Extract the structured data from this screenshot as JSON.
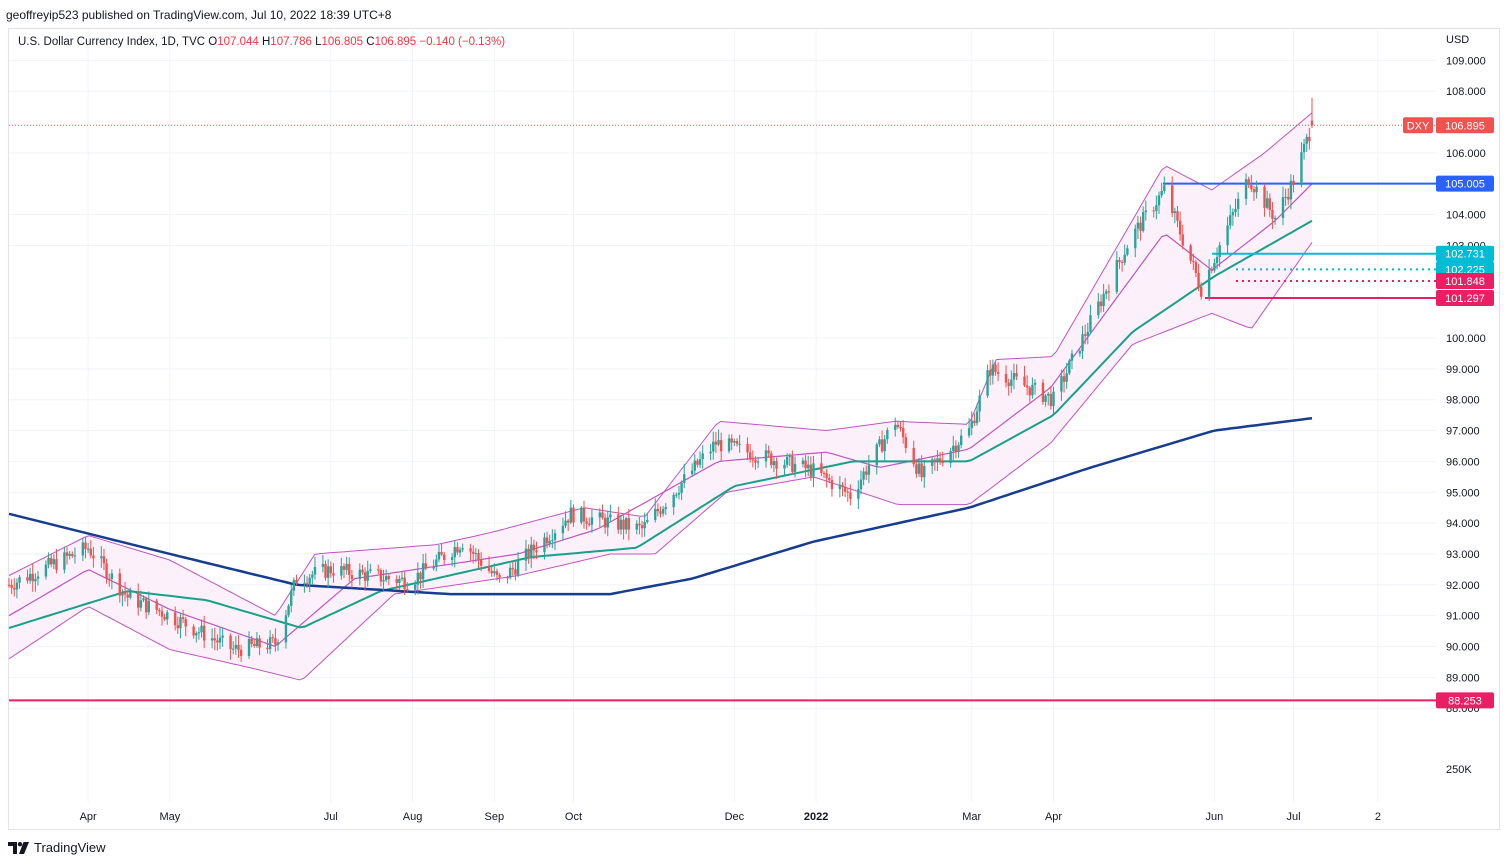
{
  "header": {
    "publisher": "geoffreyip523 published on TradingView.com, Jul 10, 2022 18:39 UTC+8"
  },
  "legend": {
    "symbol": "U.S. Dollar Currency Index, 1D, TVC",
    "o_label": "O",
    "o_value": "107.044",
    "h_label": "H",
    "h_value": "107.786",
    "l_label": "L",
    "l_value": "106.805",
    "c_label": "C",
    "c_value": "106.895",
    "change": "−0.140 (−0.13%)"
  },
  "currency": "USD",
  "footer": {
    "brand": "TradingView",
    "logo_icon": "tradingview-logo-icon"
  },
  "colors": {
    "bull": "#26a69a",
    "bear": "#ef5350",
    "bollinger": "#c054c4",
    "bollinger_fill": "#fcf0fa",
    "ma_mid": "#17a08a",
    "ma_long": "#163d8f",
    "hline_blue": "#2962ff",
    "hline_teal": "#00bcd4",
    "hline_pink": "#e91e63"
  },
  "chart_data": {
    "type": "candlestick",
    "symbol": "DXY",
    "y_ticks": [
      "109.000",
      "108.000",
      "106.000",
      "104.000",
      "103.000",
      "100.000",
      "99.000",
      "98.000",
      "97.000",
      "96.000",
      "95.000",
      "94.000",
      "93.000",
      "92.000",
      "91.000",
      "90.000",
      "89.000",
      "88.000"
    ],
    "y_tick_values": [
      109,
      108,
      106,
      104,
      103,
      100,
      99,
      98,
      97,
      96,
      95,
      94,
      93,
      92,
      91,
      90,
      89,
      88
    ],
    "volume_tick": "250K",
    "x_ticks": [
      "Apr",
      "May",
      "Jul",
      "Aug",
      "Sep",
      "Oct",
      "Dec",
      "2022",
      "Mar",
      "Apr",
      "Jun",
      "Jul",
      "2"
    ],
    "x_tick_bold": "2022",
    "last_price": {
      "tag": "DXY",
      "value": "106.895",
      "y": 106.895
    },
    "price_labels": [
      {
        "value": "105.005",
        "y": 105.005,
        "color": "#2962ff"
      },
      {
        "value": "102.731",
        "y": 102.731,
        "color": "#00bcd4"
      },
      {
        "value": "102.225",
        "y": 102.225,
        "color": "#00bcd4"
      },
      {
        "value": "101.848",
        "y": 101.848,
        "color": "#e91e63"
      },
      {
        "value": "101.297",
        "y": 101.297,
        "color": "#e91e63"
      },
      {
        "value": "88.253",
        "y": 88.253,
        "color": "#e91e63"
      }
    ],
    "close_path": [
      [
        "2021-03-01",
        92.0
      ],
      [
        "2021-03-31",
        93.2
      ],
      [
        "2021-04-15",
        91.6
      ],
      [
        "2021-05-01",
        91.0
      ],
      [
        "2021-05-25",
        89.9
      ],
      [
        "2021-06-10",
        90.1
      ],
      [
        "2021-06-18",
        92.2
      ],
      [
        "2021-07-01",
        92.5
      ],
      [
        "2021-07-31",
        92.1
      ],
      [
        "2021-08-20",
        93.4
      ],
      [
        "2021-09-03",
        92.1
      ],
      [
        "2021-09-30",
        94.3
      ],
      [
        "2021-10-27",
        93.8
      ],
      [
        "2021-11-24",
        96.6
      ],
      [
        "2021-12-31",
        95.7
      ],
      [
        "2022-01-14",
        94.9
      ],
      [
        "2022-01-31",
        97.3
      ],
      [
        "2022-02-10",
        95.5
      ],
      [
        "2022-02-28",
        97.0
      ],
      [
        "2022-03-08",
        99.0
      ],
      [
        "2022-04-01",
        98.0
      ],
      [
        "2022-04-30",
        103.2
      ],
      [
        "2022-05-13",
        104.8
      ],
      [
        "2022-05-27",
        101.6
      ],
      [
        "2022-06-14",
        105.2
      ],
      [
        "2022-06-24",
        103.9
      ],
      [
        "2022-07-01",
        105.1
      ],
      [
        "2022-07-08",
        106.9
      ]
    ],
    "moving_average_long": [
      [
        "2021-03-01",
        94.3
      ],
      [
        "2021-05-01",
        93.0
      ],
      [
        "2021-06-18",
        92.0
      ],
      [
        "2021-08-15",
        91.7
      ],
      [
        "2021-10-15",
        91.7
      ],
      [
        "2021-11-15",
        92.2
      ],
      [
        "2021-12-31",
        93.4
      ],
      [
        "2022-02-28",
        94.5
      ],
      [
        "2022-04-15",
        95.8
      ],
      [
        "2022-06-01",
        97.0
      ],
      [
        "2022-07-08",
        97.4
      ]
    ],
    "moving_average_mid": [
      [
        "2021-03-01",
        90.6
      ],
      [
        "2021-04-15",
        91.8
      ],
      [
        "2021-05-15",
        91.5
      ],
      [
        "2021-06-20",
        90.6
      ],
      [
        "2021-07-20",
        91.8
      ],
      [
        "2021-09-15",
        92.9
      ],
      [
        "2021-10-25",
        93.2
      ],
      [
        "2021-12-01",
        95.2
      ],
      [
        "2022-01-15",
        96.0
      ],
      [
        "2022-02-28",
        96.0
      ],
      [
        "2022-04-01",
        97.5
      ],
      [
        "2022-05-01",
        100.2
      ],
      [
        "2022-06-01",
        102.0
      ],
      [
        "2022-07-08",
        103.8
      ]
    ],
    "bollinger_basis": [
      [
        "2021-03-01",
        91.0
      ],
      [
        "2021-03-31",
        92.5
      ],
      [
        "2021-05-01",
        91.2
      ],
      [
        "2021-06-10",
        90.0
      ],
      [
        "2021-07-10",
        92.2
      ],
      [
        "2021-09-10",
        93.0
      ],
      [
        "2021-10-10",
        93.8
      ],
      [
        "2021-11-25",
        96.0
      ],
      [
        "2022-01-05",
        96.3
      ],
      [
        "2022-01-25",
        95.8
      ],
      [
        "2022-02-28",
        96.4
      ],
      [
        "2022-03-31",
        98.4
      ],
      [
        "2022-05-13",
        103.4
      ],
      [
        "2022-05-31",
        102.2
      ],
      [
        "2022-06-24",
        103.8
      ],
      [
        "2022-07-08",
        105.0
      ]
    ],
    "bollinger_upper": [
      [
        "2021-03-01",
        92.3
      ],
      [
        "2021-03-31",
        93.6
      ],
      [
        "2021-05-01",
        92.8
      ],
      [
        "2021-06-10",
        91.0
      ],
      [
        "2021-06-25",
        93.0
      ],
      [
        "2021-08-10",
        93.3
      ],
      [
        "2021-08-31",
        93.7
      ],
      [
        "2021-10-05",
        94.5
      ],
      [
        "2021-10-28",
        94.2
      ],
      [
        "2021-11-25",
        97.3
      ],
      [
        "2022-01-05",
        97.0
      ],
      [
        "2022-01-31",
        97.3
      ],
      [
        "2022-02-28",
        97.2
      ],
      [
        "2022-03-10",
        99.3
      ],
      [
        "2022-04-01",
        99.4
      ],
      [
        "2022-05-13",
        105.6
      ],
      [
        "2022-05-31",
        104.8
      ],
      [
        "2022-06-20",
        106.0
      ],
      [
        "2022-07-08",
        107.3
      ]
    ],
    "bollinger_lower": [
      [
        "2021-03-01",
        89.6
      ],
      [
        "2021-03-31",
        91.3
      ],
      [
        "2021-05-01",
        89.9
      ],
      [
        "2021-06-01",
        89.3
      ],
      [
        "2021-06-20",
        88.9
      ],
      [
        "2021-07-25",
        91.7
      ],
      [
        "2021-09-10",
        92.3
      ],
      [
        "2021-10-15",
        93.0
      ],
      [
        "2021-11-01",
        93.0
      ],
      [
        "2021-11-28",
        95.0
      ],
      [
        "2021-12-31",
        95.5
      ],
      [
        "2022-02-01",
        94.6
      ],
      [
        "2022-02-28",
        94.6
      ],
      [
        "2022-03-31",
        96.6
      ],
      [
        "2022-05-01",
        99.8
      ],
      [
        "2022-05-31",
        100.8
      ],
      [
        "2022-06-15",
        100.3
      ],
      [
        "2022-07-08",
        103.1
      ]
    ]
  }
}
